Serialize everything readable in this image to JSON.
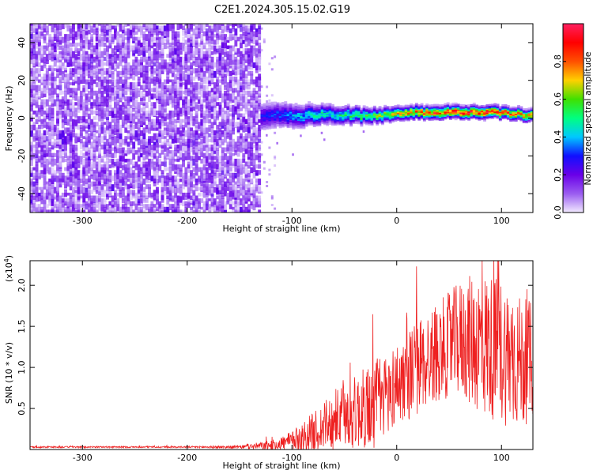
{
  "title": "C2E1.2024.305.15.02.G19",
  "chart_data": [
    {
      "type": "heatmap",
      "xlabel": "Height of straight line (km)",
      "ylabel": "Frequency (Hz)",
      "xlim": [
        -350,
        130
      ],
      "ylim": [
        -50,
        50
      ],
      "x_ticks": [
        -300,
        -200,
        -100,
        0,
        100
      ],
      "y_ticks": [
        -40,
        -20,
        0,
        20,
        40
      ],
      "x_tick_labels": [
        "-300",
        "-200",
        "-100",
        "0",
        "100"
      ],
      "y_tick_labels": [
        "-40",
        "-20",
        "0",
        "20",
        "40"
      ],
      "colorbar": {
        "label": "Normalized spectral amplitude",
        "range": [
          0,
          1
        ],
        "ticks": [
          0.0,
          0.2,
          0.4,
          0.6,
          0.8
        ],
        "tick_labels": [
          "0.0",
          "0.2",
          "0.4",
          "0.6",
          "0.8"
        ],
        "colors": [
          "#f2eaff",
          "#9a5cf0",
          "#6a00e8",
          "#1010ff",
          "#00c8ff",
          "#00ff80",
          "#40e000",
          "#ffd000",
          "#ff5000",
          "#ff0000",
          "#ff2060"
        ]
      },
      "noise_region_x": [
        -350,
        -130
      ],
      "signal_track": {
        "x": [
          -130,
          -110,
          -90,
          -70,
          -50,
          -30,
          -10,
          10,
          30,
          50,
          70,
          90,
          110,
          130
        ],
        "frequency": [
          0.5,
          1.5,
          1.0,
          2.0,
          1.5,
          1.0,
          1.5,
          2.5,
          3.0,
          3.0,
          3.0,
          3.0,
          2.0,
          1.0
        ],
        "peak_amplitude": [
          0.3,
          0.35,
          0.45,
          0.5,
          0.55,
          0.6,
          0.7,
          0.8,
          0.9,
          0.92,
          0.95,
          0.9,
          0.85,
          0.8
        ]
      }
    },
    {
      "type": "line",
      "xlabel": "Height of straight line (km)",
      "ylabel": "SNR (10 * v/v)",
      "y_multiplier": "(x10",
      "y_multiplier_exp": "4",
      "y_multiplier_close": ")",
      "xlim": [
        -350,
        130
      ],
      "ylim": [
        0,
        23000
      ],
      "x_ticks": [
        -300,
        -200,
        -100,
        0,
        100
      ],
      "y_ticks": [
        5000,
        10000,
        15000,
        20000
      ],
      "x_tick_labels": [
        "-300",
        "-200",
        "-100",
        "0",
        "100"
      ],
      "y_tick_labels": [
        "0.5",
        "1.0",
        "1.5",
        "2.0"
      ],
      "line_color": "#ee2020",
      "series": [
        {
          "x": [
            -350,
            -300,
            -250,
            -200,
            -150,
            -120,
            -100,
            -80,
            -60,
            -40,
            -20,
            0,
            20,
            40,
            60,
            80,
            100,
            120,
            130
          ],
          "y": [
            300,
            300,
            300,
            300,
            300,
            500,
            1000,
            2000,
            3500,
            4500,
            5500,
            8000,
            10000,
            12000,
            13500,
            13000,
            12000,
            10500,
            11000
          ],
          "spread": [
            100,
            100,
            100,
            100,
            200,
            600,
            1200,
            2500,
            3500,
            4500,
            5500,
            5000,
            6000,
            6000,
            7000,
            9000,
            9000,
            8000,
            7000
          ]
        }
      ]
    }
  ]
}
